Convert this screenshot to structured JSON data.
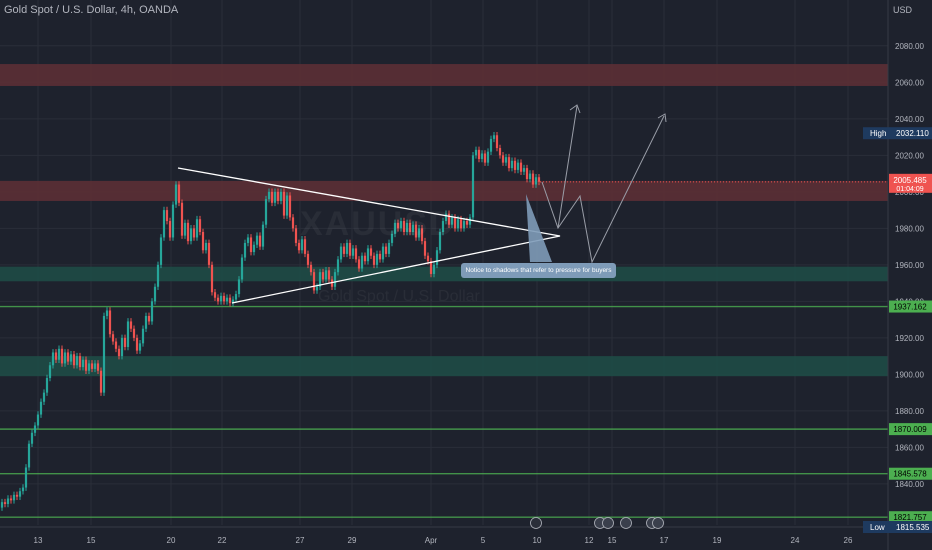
{
  "header": {
    "title": "Gold Spot / U.S. Dollar, 4h, OANDA",
    "currency": "USD"
  },
  "watermark": {
    "symbol": "XAUUSD",
    "name": "Gold Spot / U.S. Dollar"
  },
  "note": "Notice to shadows that refer to pressure for buyers",
  "colors": {
    "background": "#1e222d",
    "up": "#26a69a",
    "down": "#ef5350",
    "resistance_zone": "#5b2f35",
    "support_zone": "#1f4a44",
    "level_line": "#4caf50",
    "level_tag": "#4caf50",
    "price_tag": "#ef5350",
    "extreme_tag": "#1e3a5f"
  },
  "chart_data": {
    "type": "candlestick",
    "symbol": "XAUUSD",
    "timeframe": "4h",
    "y_ticks": [
      1840,
      1860,
      1880,
      1900,
      1920,
      1940,
      1960,
      1980,
      2000,
      2020,
      2040,
      2060,
      2080
    ],
    "x_ticks": [
      "13",
      "15",
      "20",
      "22",
      "27",
      "29",
      "Apr",
      "5",
      "10",
      "12",
      "15",
      "17",
      "19",
      "24",
      "26"
    ],
    "resistance_zones": [
      [
        2058,
        2070
      ],
      [
        1995,
        2006
      ]
    ],
    "support_zones": [
      [
        1951,
        1959
      ],
      [
        1899,
        1910
      ]
    ],
    "levels": [
      {
        "price": 1937.162,
        "label": "1937.162"
      },
      {
        "price": 1870.009,
        "label": "1870.009"
      },
      {
        "price": 1845.578,
        "label": "1845.578"
      },
      {
        "price": 1821.757,
        "label": "1821.757"
      }
    ],
    "current_price": {
      "label": "2005.485",
      "countdown": "01:04:09"
    },
    "high": {
      "label": "High",
      "value": "2032.110"
    },
    "low": {
      "label": "Low",
      "value": "1815.535"
    }
  }
}
